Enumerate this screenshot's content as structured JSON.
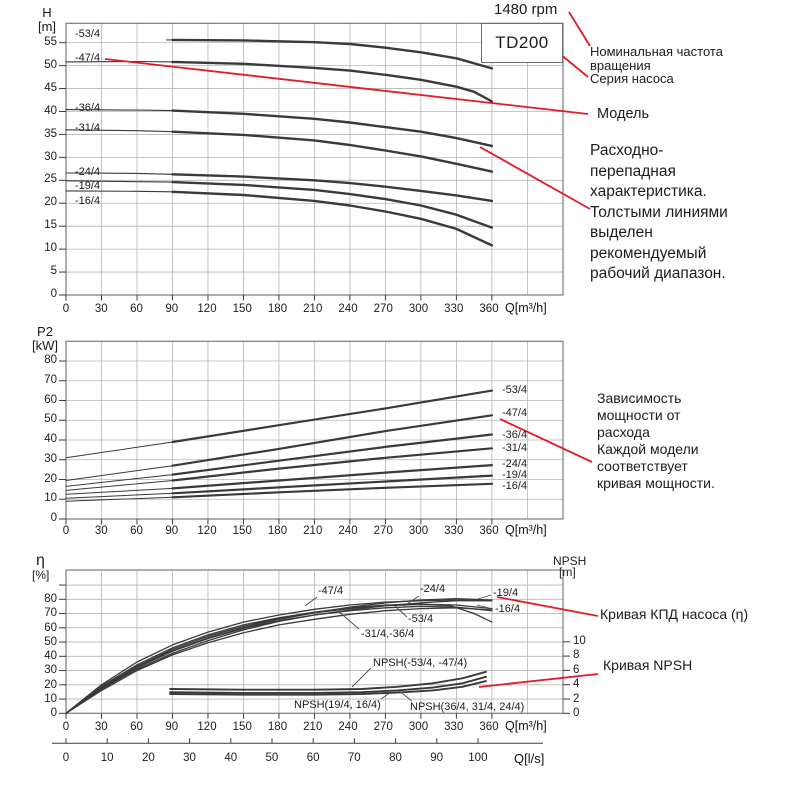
{
  "header": {
    "rpm": "1480 rpm",
    "series_box": "TD200"
  },
  "callouts": {
    "rpm_note_lines": [
      "Номинальная частота",
      "вращения"
    ],
    "series_note": "Серия насоса",
    "model_note": "Модель",
    "hq_note_lines": [
      "Расходно-",
      "перепадная",
      "характеристика.",
      "Толстыми линиями",
      "выделен",
      "рекомендуемый",
      "рабочий диапазон."
    ],
    "power_note_lines": [
      "Зависимость",
      "мощности от",
      "расхода",
      "Каждой модели",
      "соответствует",
      "кривая мощности."
    ],
    "efficiency_note": "Кривая КПД насоса (η)",
    "npsh_note": "Кривая NPSH"
  },
  "colors": {
    "callout_red": "#e11b2b",
    "curve": "#3a3a3a",
    "grid": "#b5b5b5"
  },
  "chart_data": [
    {
      "type": "line",
      "xlabel": "Q[m³/h]",
      "ylabel_lines": [
        "H",
        "[m]"
      ],
      "xlim": [
        0,
        420
      ],
      "ylim": [
        0,
        59
      ],
      "grid": true,
      "thick_range_from_q": 90,
      "x_tick_labels": [
        0,
        30,
        60,
        90,
        120,
        150,
        180,
        210,
        240,
        270,
        300,
        330,
        360
      ],
      "y_tick_labels": [
        55,
        50,
        45,
        40,
        35,
        30,
        25,
        20,
        15,
        10,
        5,
        0
      ],
      "series": [
        {
          "name": "-53/4",
          "points": [
            [
              85,
              55.6
            ],
            [
              90,
              55.6
            ],
            [
              150,
              55.5
            ],
            [
              210,
              55.1
            ],
            [
              240,
              54.7
            ],
            [
              270,
              53.9
            ],
            [
              300,
              52.9
            ],
            [
              330,
              51.6
            ],
            [
              360,
              49.4
            ]
          ]
        },
        {
          "name": "-47/4",
          "points": [
            [
              0,
              50.8
            ],
            [
              60,
              50.9
            ],
            [
              90,
              50.8
            ],
            [
              150,
              50.4
            ],
            [
              210,
              49.5
            ],
            [
              240,
              48.9
            ],
            [
              270,
              48.0
            ],
            [
              300,
              46.9
            ],
            [
              330,
              45.4
            ],
            [
              345,
              44.3
            ],
            [
              360,
              42.2
            ]
          ]
        },
        {
          "name": "-36/4",
          "points": [
            [
              0,
              40.4
            ],
            [
              60,
              40.3
            ],
            [
              90,
              40.2
            ],
            [
              150,
              39.5
            ],
            [
              210,
              38.4
            ],
            [
              240,
              37.6
            ],
            [
              270,
              36.6
            ],
            [
              300,
              35.6
            ],
            [
              330,
              34.2
            ],
            [
              360,
              32.5
            ]
          ]
        },
        {
          "name": "-31/4",
          "points": [
            [
              0,
              36.0
            ],
            [
              60,
              35.8
            ],
            [
              90,
              35.6
            ],
            [
              150,
              34.9
            ],
            [
              210,
              33.7
            ],
            [
              240,
              32.7
            ],
            [
              270,
              31.5
            ],
            [
              300,
              30.2
            ],
            [
              330,
              28.6
            ],
            [
              360,
              26.9
            ]
          ]
        },
        {
          "name": "-24/4",
          "points": [
            [
              0,
              26.6
            ],
            [
              60,
              26.5
            ],
            [
              90,
              26.3
            ],
            [
              150,
              25.8
            ],
            [
              210,
              25.0
            ],
            [
              240,
              24.4
            ],
            [
              270,
              23.6
            ],
            [
              300,
              22.7
            ],
            [
              330,
              21.7
            ],
            [
              360,
              20.5
            ]
          ]
        },
        {
          "name": "-19/4",
          "points": [
            [
              0,
              24.9
            ],
            [
              60,
              24.7
            ],
            [
              90,
              24.6
            ],
            [
              150,
              24.0
            ],
            [
              210,
              22.9
            ],
            [
              240,
              22.0
            ],
            [
              270,
              20.9
            ],
            [
              300,
              19.5
            ],
            [
              330,
              17.5
            ],
            [
              360,
              14.7
            ]
          ]
        },
        {
          "name": "-16/4",
          "points": [
            [
              0,
              22.7
            ],
            [
              60,
              22.6
            ],
            [
              90,
              22.5
            ],
            [
              150,
              21.8
            ],
            [
              210,
              20.5
            ],
            [
              240,
              19.5
            ],
            [
              270,
              18.2
            ],
            [
              300,
              16.6
            ],
            [
              330,
              14.4
            ],
            [
              360,
              10.8
            ]
          ]
        }
      ]
    },
    {
      "type": "line",
      "xlabel": "Q[m³/h]",
      "ylabel_lines": [
        "P2",
        "[kW]"
      ],
      "xlim": [
        0,
        420
      ],
      "ylim": [
        0,
        90
      ],
      "grid": true,
      "thick_range_from_q": 90,
      "x_tick_labels": [
        0,
        30,
        60,
        90,
        120,
        150,
        180,
        210,
        240,
        270,
        300,
        330,
        360
      ],
      "y_tick_labels": [
        80,
        70,
        60,
        50,
        40,
        30,
        20,
        10,
        0
      ],
      "series": [
        {
          "name": "-53/4",
          "points": [
            [
              0,
              31
            ],
            [
              90,
              39
            ],
            [
              180,
              47.5
            ],
            [
              270,
              56
            ],
            [
              360,
              65
            ]
          ]
        },
        {
          "name": "-47/4",
          "points": [
            [
              0,
              19.5
            ],
            [
              90,
              27
            ],
            [
              180,
              35.5
            ],
            [
              270,
              44.5
            ],
            [
              360,
              52.5
            ]
          ]
        },
        {
          "name": "-36/4",
          "points": [
            [
              0,
              16.5
            ],
            [
              90,
              22.5
            ],
            [
              180,
              29.5
            ],
            [
              270,
              36.5
            ],
            [
              360,
              42.8
            ]
          ]
        },
        {
          "name": "-31/4",
          "points": [
            [
              0,
              14.5
            ],
            [
              90,
              19.5
            ],
            [
              180,
              25.5
            ],
            [
              270,
              31
            ],
            [
              360,
              35.8
            ]
          ]
        },
        {
          "name": "-24/4",
          "points": [
            [
              0,
              12.5
            ],
            [
              90,
              15.5
            ],
            [
              180,
              19.5
            ],
            [
              270,
              23.5
            ],
            [
              360,
              27.3
            ]
          ]
        },
        {
          "name": "-19/4",
          "points": [
            [
              0,
              10.5
            ],
            [
              90,
              13
            ],
            [
              180,
              16
            ],
            [
              270,
              19
            ],
            [
              360,
              22
            ]
          ]
        },
        {
          "name": "-16/4",
          "points": [
            [
              0,
              9
            ],
            [
              90,
              11
            ],
            [
              180,
              13.5
            ],
            [
              270,
              15.8
            ],
            [
              360,
              17.8
            ]
          ]
        }
      ]
    },
    {
      "type": "line",
      "xlabel": "Q[m³/h]",
      "xlabel2": "Q[l/s]",
      "ylabel_lines": [
        "η",
        "[%]"
      ],
      "y2label_lines": [
        "NPSH",
        "[m]"
      ],
      "xlim": [
        0,
        420
      ],
      "ylim": [
        0,
        100
      ],
      "y2lim": [
        0,
        10
      ],
      "grid": true,
      "x_tick_labels": [
        0,
        30,
        60,
        90,
        120,
        150,
        180,
        210,
        240,
        270,
        300,
        330,
        360
      ],
      "x2_tick_labels": [
        0,
        10,
        20,
        30,
        40,
        50,
        60,
        70,
        80,
        90,
        100
      ],
      "y_tick_labels": [
        80,
        70,
        60,
        50,
        40,
        30,
        20,
        10,
        0
      ],
      "y2_tick_labels": [
        10,
        8,
        6,
        4,
        2,
        0
      ],
      "group_labels": {
        "eff_31_36": "-31/4,-36/4"
      },
      "series": [
        {
          "name": "-53/4",
          "points": [
            [
              0,
              0
            ],
            [
              30,
              19
            ],
            [
              60,
              34
            ],
            [
              90,
              46
            ],
            [
              120,
              55
            ],
            [
              150,
              62
            ],
            [
              180,
              67
            ],
            [
              210,
              71
            ],
            [
              240,
              74
            ],
            [
              270,
              76
            ],
            [
              300,
              76.5
            ],
            [
              325,
              75.5
            ],
            [
              345,
              70
            ],
            [
              360,
              64
            ]
          ]
        },
        {
          "name": "-47/4",
          "points": [
            [
              0,
              0
            ],
            [
              30,
              20
            ],
            [
              60,
              36
            ],
            [
              90,
              48
            ],
            [
              120,
              57
            ],
            [
              150,
              64
            ],
            [
              180,
              69
            ],
            [
              210,
              73
            ],
            [
              240,
              76
            ],
            [
              270,
              78
            ],
            [
              300,
              79
            ],
            [
              330,
              79.5
            ],
            [
              360,
              79
            ]
          ]
        },
        {
          "name": "-36/4",
          "points": [
            [
              0,
              0
            ],
            [
              30,
              18
            ],
            [
              60,
              33
            ],
            [
              90,
              45
            ],
            [
              120,
              54
            ],
            [
              150,
              61
            ],
            [
              180,
              66.5
            ],
            [
              210,
              70.5
            ],
            [
              240,
              73.5
            ],
            [
              270,
              75.5
            ],
            [
              300,
              76.5
            ],
            [
              330,
              76
            ],
            [
              360,
              73.5
            ]
          ]
        },
        {
          "name": "-31/4",
          "points": [
            [
              0,
              0
            ],
            [
              30,
              17.5
            ],
            [
              60,
              32
            ],
            [
              90,
              43.5
            ],
            [
              120,
              52.5
            ],
            [
              150,
              59.5
            ],
            [
              180,
              65
            ],
            [
              210,
              69
            ],
            [
              240,
              72
            ],
            [
              270,
              74
            ],
            [
              300,
              75
            ],
            [
              330,
              74.5
            ],
            [
              360,
              72
            ]
          ]
        },
        {
          "name": "-24/4",
          "points": [
            [
              0,
              0
            ],
            [
              30,
              18
            ],
            [
              60,
              33
            ],
            [
              90,
              44
            ],
            [
              120,
              53
            ],
            [
              150,
              60
            ],
            [
              180,
              66
            ],
            [
              210,
              70.5
            ],
            [
              240,
              74.5
            ],
            [
              270,
              77.5
            ],
            [
              300,
              79.5
            ],
            [
              330,
              80.5
            ],
            [
              360,
              79.5
            ]
          ]
        },
        {
          "name": "-19/4",
          "points": [
            [
              0,
              0
            ],
            [
              30,
              17
            ],
            [
              60,
              31
            ],
            [
              90,
              42
            ],
            [
              120,
              51
            ],
            [
              150,
              58.5
            ],
            [
              180,
              64.5
            ],
            [
              210,
              69
            ],
            [
              240,
              72.5
            ],
            [
              270,
              75.5
            ],
            [
              300,
              77.5
            ],
            [
              330,
              79
            ],
            [
              360,
              79
            ]
          ]
        },
        {
          "name": "-16/4",
          "points": [
            [
              0,
              0
            ],
            [
              30,
              16
            ],
            [
              60,
              30
            ],
            [
              90,
              41
            ],
            [
              120,
              49.5
            ],
            [
              150,
              56.5
            ],
            [
              180,
              62
            ],
            [
              210,
              66
            ],
            [
              240,
              69.5
            ],
            [
              270,
              72
            ],
            [
              300,
              73.5
            ],
            [
              330,
              74
            ],
            [
              360,
              72.5
            ]
          ]
        }
      ],
      "npsh_series": [
        {
          "name": "NPSH(-53/4, -47/4)",
          "points": [
            [
              88,
              3.4
            ],
            [
              150,
              3.3
            ],
            [
              210,
              3.3
            ],
            [
              250,
              3.4
            ],
            [
              280,
              3.7
            ],
            [
              310,
              4.2
            ],
            [
              335,
              4.9
            ],
            [
              355,
              5.8
            ]
          ]
        },
        {
          "name": "NPSH(36/4, 31/4, 24/4)",
          "points": [
            [
              88,
              2.95
            ],
            [
              150,
              2.85
            ],
            [
              210,
              2.85
            ],
            [
              250,
              2.95
            ],
            [
              280,
              3.2
            ],
            [
              310,
              3.6
            ],
            [
              335,
              4.2
            ],
            [
              355,
              5.1
            ]
          ]
        },
        {
          "name": "NPSH(19/4, 16/4)",
          "points": [
            [
              88,
              2.7
            ],
            [
              150,
              2.6
            ],
            [
              210,
              2.6
            ],
            [
              250,
              2.7
            ],
            [
              280,
              2.9
            ],
            [
              310,
              3.2
            ],
            [
              335,
              3.7
            ],
            [
              355,
              4.5
            ]
          ]
        }
      ]
    }
  ]
}
